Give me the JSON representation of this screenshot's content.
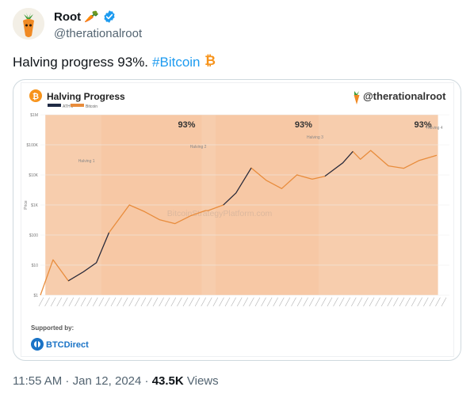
{
  "author": {
    "name": "Root",
    "name_emoji": "🥕",
    "handle": "@therationalroot",
    "verified": true
  },
  "tweet": {
    "text": "Halving progress 93%.",
    "hashtag": "#Bitcoin",
    "hashtag_emoji": "₿"
  },
  "media": {
    "header_title": "Halving Progress",
    "watermark_handle": "@therationalroot",
    "legend": [
      "ATH's",
      "Bitcoin"
    ],
    "halving_progress_labels": [
      "93%",
      "93%",
      "93%"
    ],
    "halving_labels": [
      "Halving 1",
      "Halving 2",
      "Halving 3",
      "Halving 4"
    ],
    "watermark_text": "BitcoinStrategyPlatform.com",
    "y_axis_label": "Price",
    "supported_by": "Supported by:",
    "sponsor_name": "BTCDirect",
    "colors": {
      "orange": "#e88c3c",
      "band": "#f6c8a4",
      "ath": "#1f2a44",
      "bitcoin_orange": "#f7931a"
    }
  },
  "chart_data": {
    "type": "line",
    "ylabel": "Price",
    "yscale": "log",
    "ylim": [
      1,
      1000000
    ],
    "y_ticks": [
      "$1",
      "$10",
      "$100",
      "$1K",
      "$10K",
      "$100K",
      "$1M"
    ],
    "series": [
      {
        "name": "Bitcoin",
        "x": [
          "2011-01",
          "2011-06",
          "2011-12",
          "2012-06",
          "2012-11",
          "2013-04",
          "2013-12",
          "2014-06",
          "2014-12",
          "2015-06",
          "2015-12",
          "2016-06",
          "2016-07",
          "2017-01",
          "2017-06",
          "2017-12",
          "2018-06",
          "2018-12",
          "2019-06",
          "2019-12",
          "2020-05",
          "2020-12",
          "2021-04",
          "2021-07",
          "2021-11",
          "2022-06",
          "2022-12",
          "2023-06",
          "2024-01"
        ],
        "values": [
          1,
          15,
          3,
          6,
          12,
          120,
          1000,
          600,
          320,
          240,
          430,
          650,
          650,
          1000,
          2500,
          17000,
          6500,
          3500,
          10000,
          7200,
          9000,
          25000,
          60000,
          33000,
          65000,
          20000,
          16500,
          30000,
          45000
        ]
      }
    ],
    "halvings": [
      "2012-11",
      "2016-07",
      "2020-05",
      "2024-04"
    ]
  },
  "footer": {
    "time": "11:55 AM",
    "separator": " · ",
    "date": "Jan 12, 2024",
    "views_count": "43.5K",
    "views_label": " Views"
  }
}
